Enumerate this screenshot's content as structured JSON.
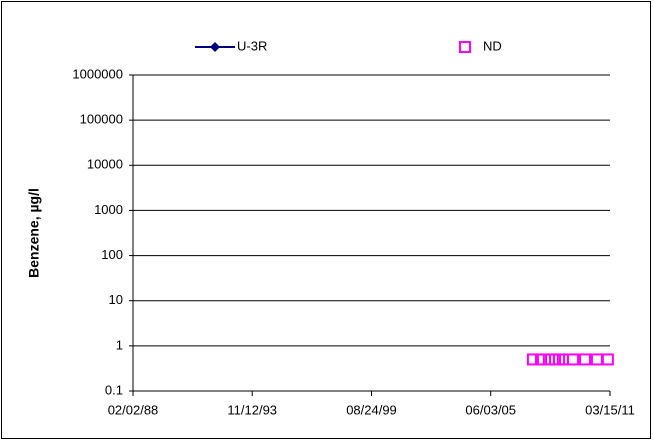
{
  "chart_data": {
    "type": "line",
    "y_label": "Benzene, µg/l",
    "series": [
      {
        "name": "U-3R",
        "color": "#000080",
        "marker": "diamond",
        "line": true,
        "x": [],
        "values": []
      },
      {
        "name": "ND",
        "color": "#ff00ff",
        "marker": "square",
        "line": false,
        "x": [
          "06/20/07",
          "11/10/07",
          "03/28/08",
          "07/15/08",
          "09/24/08",
          "12/01/08",
          "05/30/09",
          "12/28/09",
          "07/27/10",
          "02/05/11"
        ],
        "values": [
          0.5,
          0.5,
          0.5,
          0.5,
          0.5,
          0.5,
          0.5,
          0.5,
          0.5,
          0.5
        ]
      }
    ],
    "xlim": [
      "02/02/88",
      "03/15/11"
    ],
    "xticks": [
      "02/02/88",
      "11/12/93",
      "08/24/99",
      "06/03/05",
      "03/15/11"
    ],
    "ylim": [
      0.1,
      1000000
    ],
    "yticks": [
      0.1,
      1,
      10,
      100,
      1000,
      10000,
      100000,
      1000000
    ],
    "log_y": true,
    "grid": true,
    "legend": "top"
  }
}
